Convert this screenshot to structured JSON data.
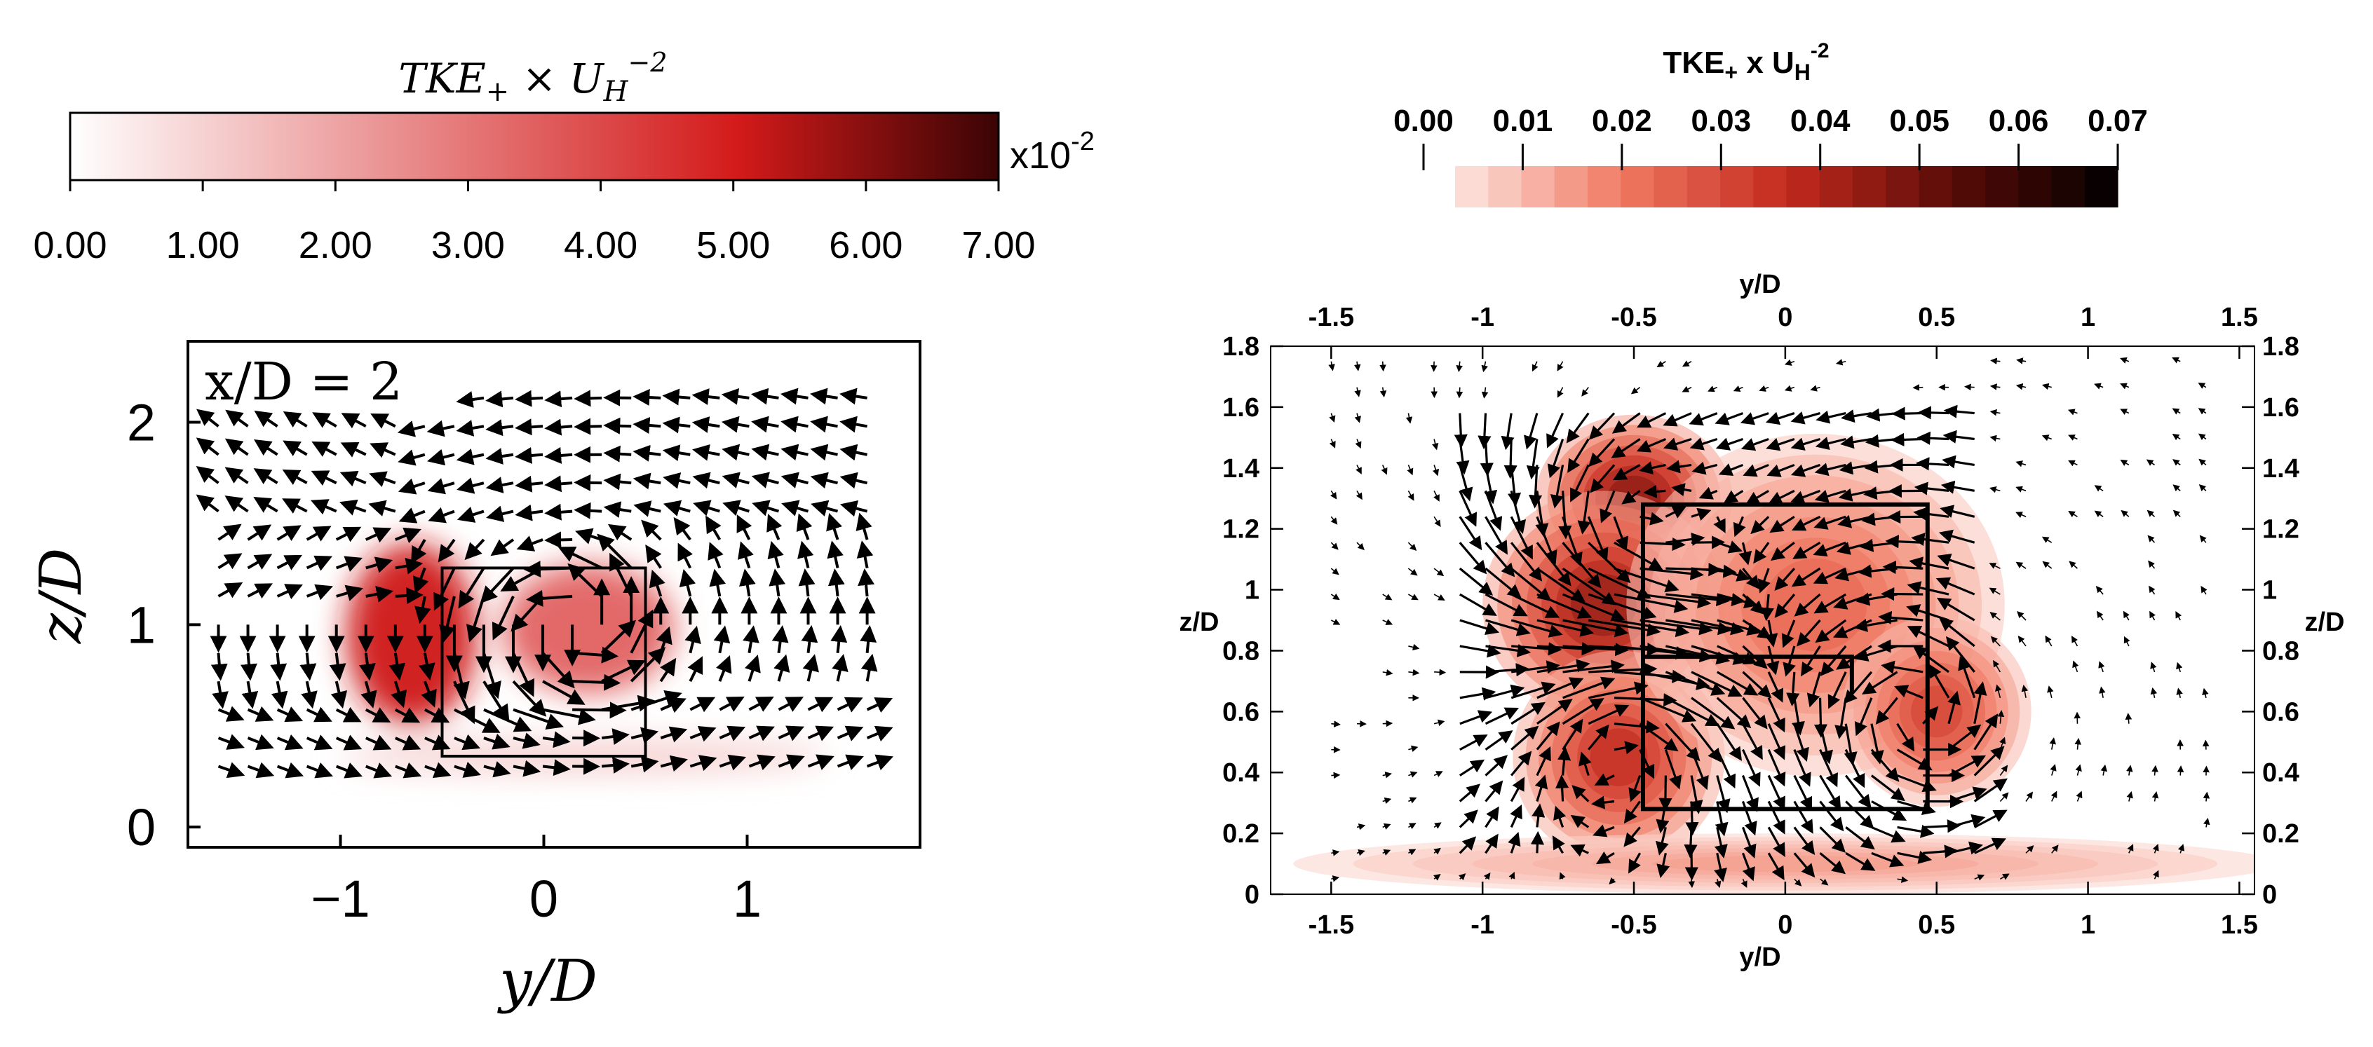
{
  "chart_data": [
    {
      "type": "heatmap",
      "panel": "left",
      "colorbar": {
        "title": "TKE+ × UH^-2",
        "ticks": [
          "0.00",
          "1.00",
          "2.00",
          "3.00",
          "4.00",
          "5.00",
          "6.00",
          "7.00"
        ],
        "range": [
          0,
          7
        ],
        "multiplier_base": "x10",
        "multiplier_exp": "-2",
        "colors": [
          "#ffffff",
          "#d31a1a",
          "#3a0404"
        ]
      },
      "annotation": "x/D = 2",
      "xlabel": "y/D",
      "ylabel": "z/D",
      "xticks": [
        "-1",
        "0",
        "1"
      ],
      "yticks": [
        "0",
        "1",
        "2"
      ],
      "xlim": [
        -1.75,
        1.85
      ],
      "ylim": [
        -0.1,
        2.4
      ],
      "building": {
        "y": [
          -0.5,
          0.5
        ],
        "z": [
          0.35,
          1.28
        ]
      },
      "tke_blobs": [
        {
          "y": -0.65,
          "z": 0.95,
          "sy": 0.32,
          "sz": 0.45,
          "value": 4.6
        },
        {
          "y": 0.22,
          "z": 0.98,
          "sy": 0.42,
          "sz": 0.32,
          "value": 3.1
        },
        {
          "y": 0.2,
          "z": 0.35,
          "sy": 1.2,
          "sz": 0.08,
          "value": 1.0
        }
      ]
    },
    {
      "type": "heatmap",
      "panel": "right",
      "colorbar": {
        "title_main": "TKE",
        "title_sub": "+",
        "title_mid": " x U",
        "title_sub2": "H",
        "title_sup": "-2",
        "ticks": [
          "0.00",
          "0.01",
          "0.02",
          "0.03",
          "0.04",
          "0.05",
          "0.06",
          "0.07"
        ],
        "range": [
          0,
          0.07
        ],
        "levels": 20,
        "colors": [
          "#fde6e2",
          "#f07a63",
          "#c42a1e",
          "#5a0c08",
          "#000000"
        ]
      },
      "xlabel": "y/D",
      "ylabel": "z/D",
      "xticks": [
        "-1.5",
        "-1",
        "-0.5",
        "0",
        "0.5",
        "1",
        "1.5"
      ],
      "yticks": [
        "0",
        "0.2",
        "0.4",
        "0.6",
        "0.8",
        "1",
        "1.2",
        "1.4",
        "1.6",
        "1.8"
      ],
      "xlim": [
        -1.7,
        1.55
      ],
      "ylim": [
        0,
        1.8
      ],
      "building": {
        "y": [
          -0.47,
          0.47
        ],
        "z": [
          0.28,
          1.28
        ]
      },
      "tke_blobs": [
        {
          "y": -0.5,
          "z": 1.3,
          "sy": 0.26,
          "sz": 0.22,
          "value": 0.046
        },
        {
          "y": -0.6,
          "z": 0.95,
          "sy": 0.32,
          "sz": 0.3,
          "value": 0.044
        },
        {
          "y": -0.55,
          "z": 0.45,
          "sy": 0.28,
          "sz": 0.28,
          "value": 0.036
        },
        {
          "y": 0.1,
          "z": 0.95,
          "sy": 0.5,
          "sz": 0.45,
          "value": 0.022
        },
        {
          "y": 0.5,
          "z": 0.6,
          "sy": 0.25,
          "sz": 0.25,
          "value": 0.03
        },
        {
          "y": 0.0,
          "z": 0.1,
          "sy": 1.3,
          "sz": 0.08,
          "value": 0.012
        }
      ]
    }
  ]
}
